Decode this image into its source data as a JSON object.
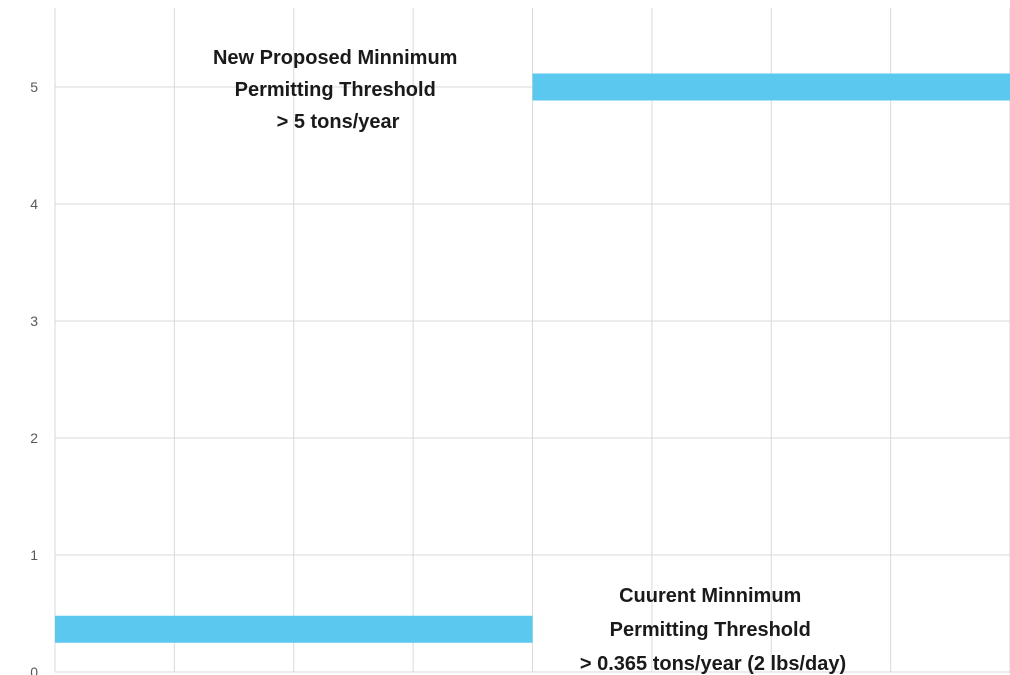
{
  "chart_data": {
    "type": "line",
    "title": "",
    "xlabel": "",
    "ylabel": "",
    "ylim": [
      0,
      5.7
    ],
    "yticks": [
      0,
      1,
      2,
      3,
      4,
      5
    ],
    "grid": true,
    "series_color": "#5bc8f0",
    "series": [
      {
        "x": [
          0,
          4
        ],
        "y": [
          0.365,
          0.365
        ]
      },
      {
        "x": [
          4,
          8
        ],
        "y": [
          5,
          5
        ]
      }
    ],
    "annotations": [
      {
        "id": "new-threshold",
        "lines": [
          "New Proposed Minnimum",
          "Permitting Threshold",
          "> 5 tons/year"
        ]
      },
      {
        "id": "current-threshold",
        "lines": [
          "Cuurent Minnimum",
          "Permitting Threshold",
          "> 0.365 tons/year (2 lbs/day)"
        ]
      }
    ]
  }
}
